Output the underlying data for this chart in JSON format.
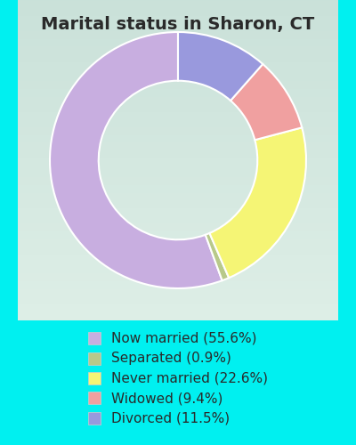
{
  "title": "Marital status in Sharon, CT",
  "title_color": "#2a2a2a",
  "title_fontsize": 14,
  "background_color_outer": "#00f0f0",
  "slices": [
    {
      "label": "Now married (55.6%)",
      "value": 55.6,
      "color": "#c8aee0"
    },
    {
      "label": "Separated (0.9%)",
      "value": 0.9,
      "color": "#b8c98a"
    },
    {
      "label": "Never married (22.6%)",
      "value": 22.6,
      "color": "#f5f575"
    },
    {
      "label": "Widowed (9.4%)",
      "value": 9.4,
      "color": "#f0a0a0"
    },
    {
      "label": "Divorced (11.5%)",
      "value": 11.5,
      "color": "#9999dd"
    }
  ],
  "legend_fontsize": 11,
  "donut_width": 0.38,
  "start_angle": 90
}
